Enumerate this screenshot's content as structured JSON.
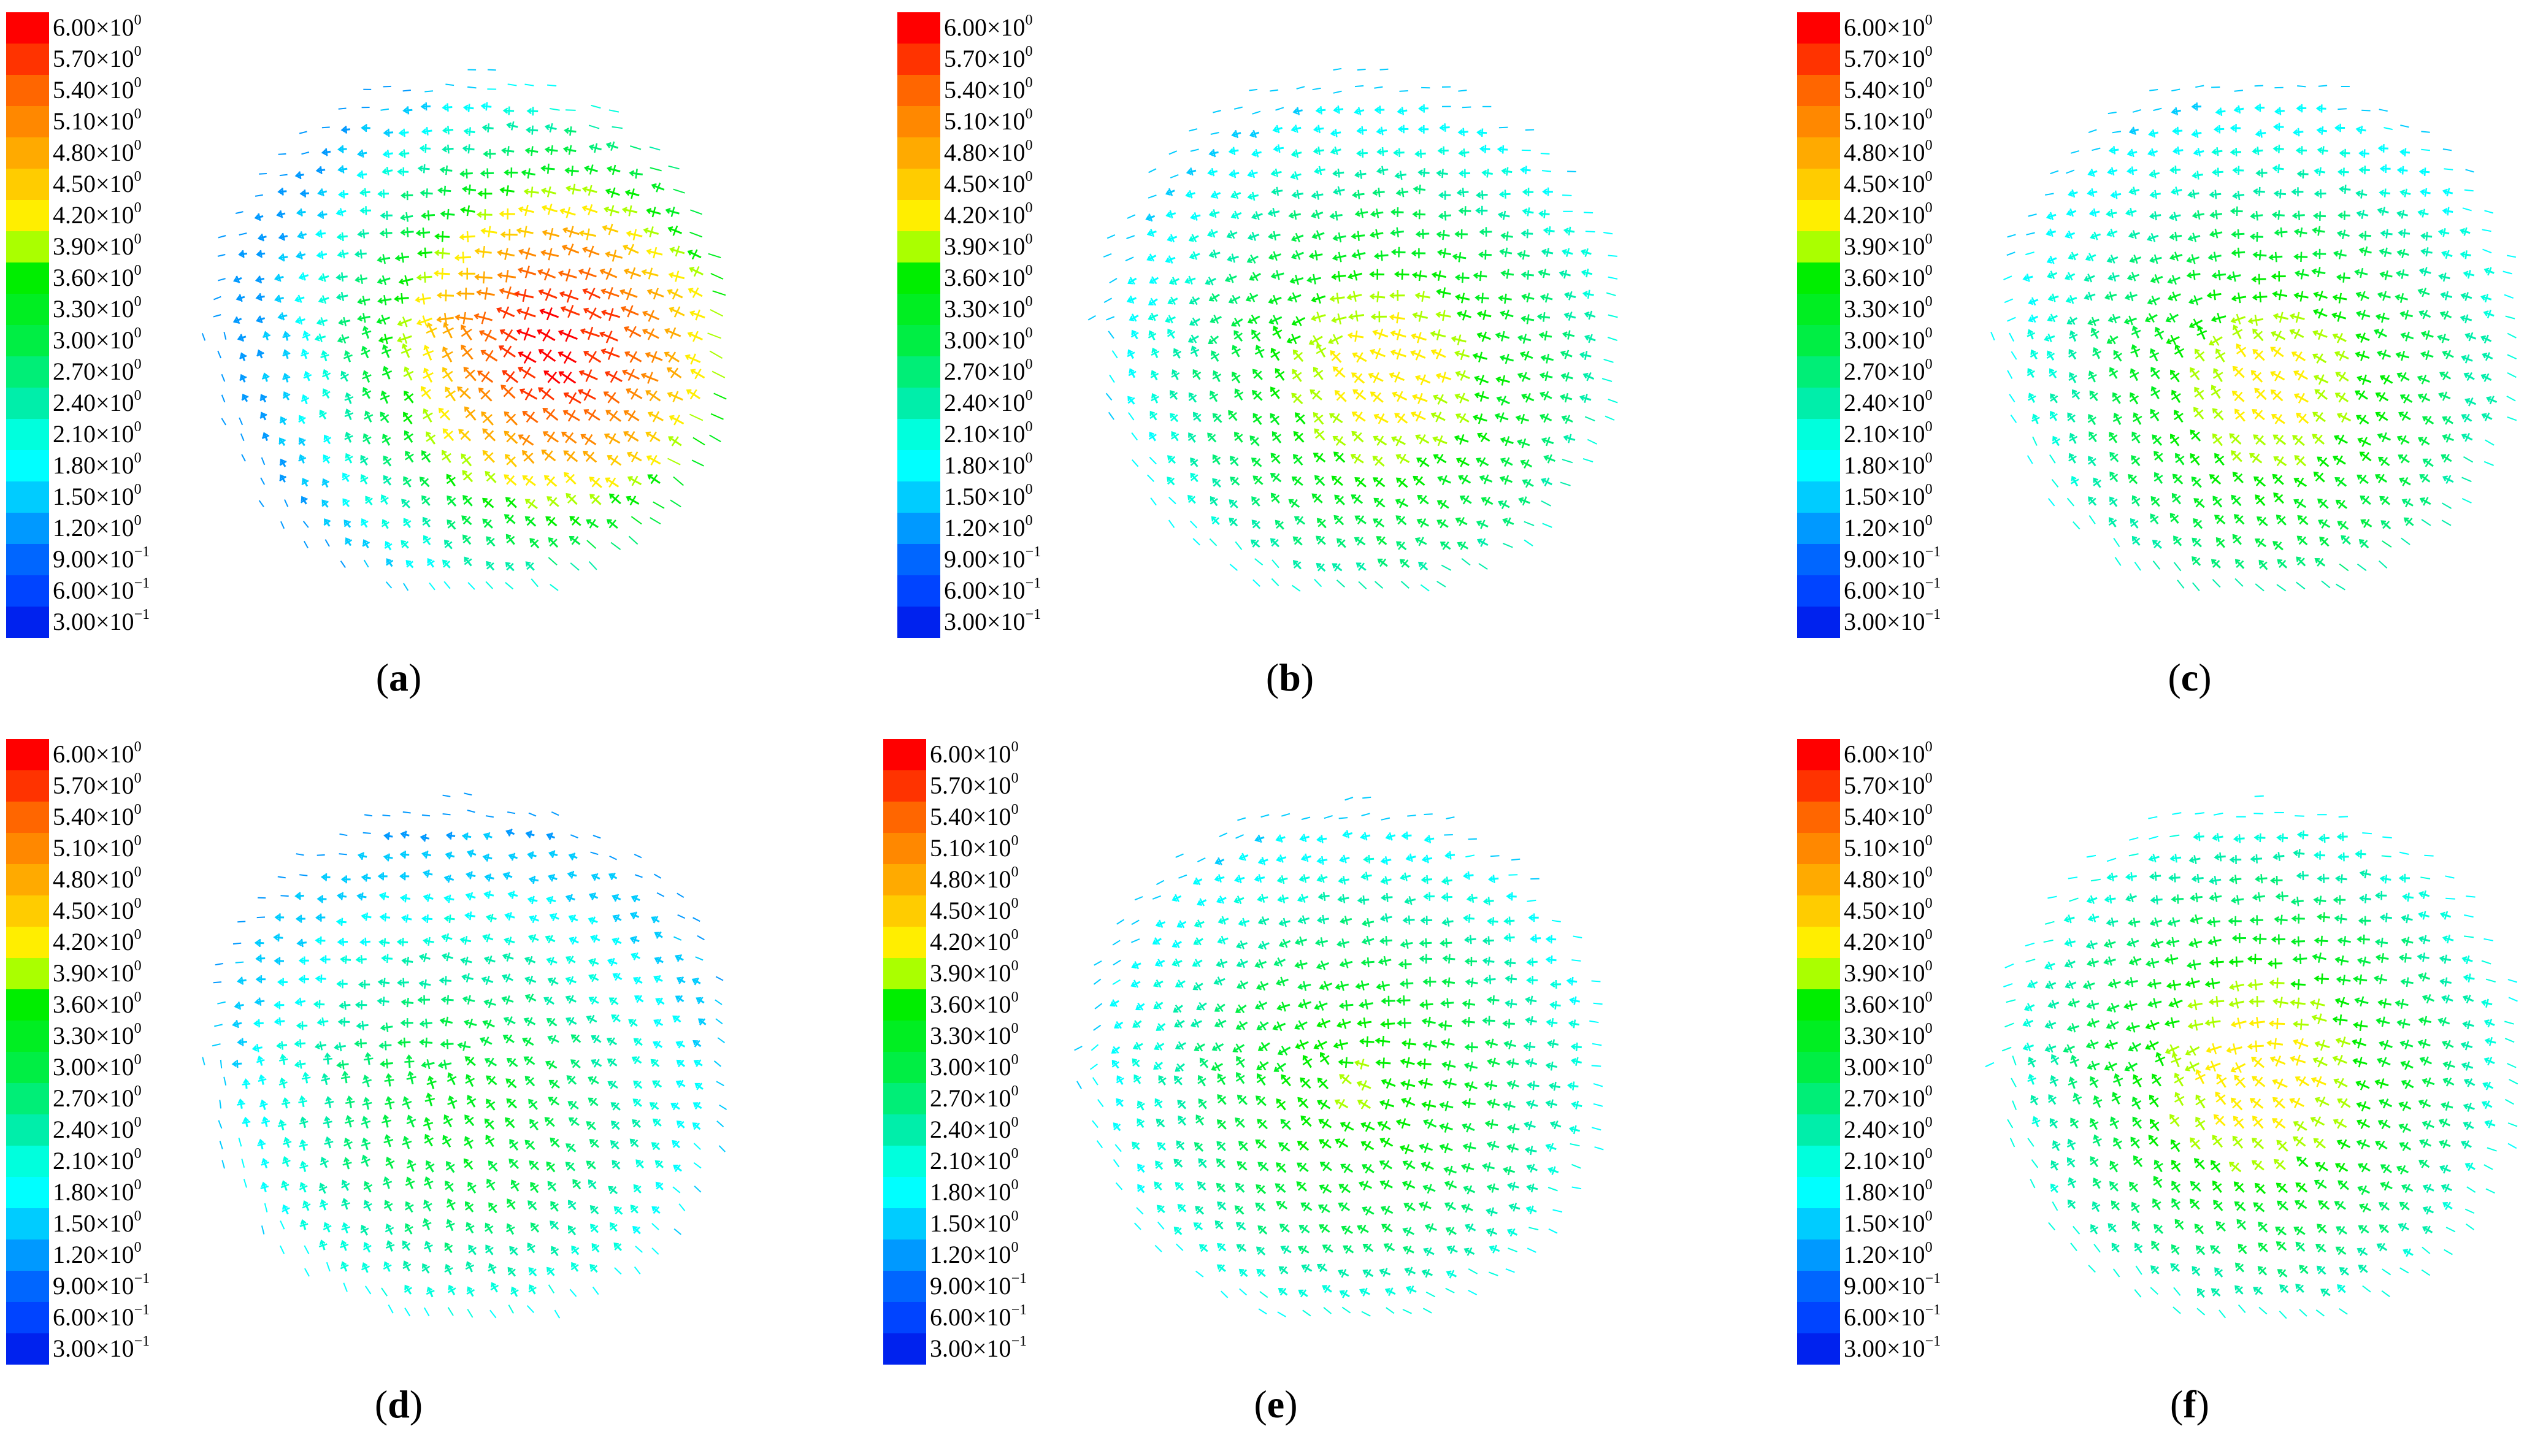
{
  "legend": {
    "colors": [
      "#ff0000",
      "#ff3300",
      "#ff6600",
      "#ff8800",
      "#ffaa00",
      "#ffcc00",
      "#ffee00",
      "#aaff00",
      "#00ee00",
      "#00ee22",
      "#00ee44",
      "#00ee77",
      "#00eeaa",
      "#00ffdd",
      "#00ffff",
      "#00ccff",
      "#0099ff",
      "#0066ff",
      "#0044ff",
      "#0022ee"
    ],
    "labels": [
      {
        "mantissa": "6.00×10",
        "exponent": "0"
      },
      {
        "mantissa": "5.70×10",
        "exponent": "0"
      },
      {
        "mantissa": "5.40×10",
        "exponent": "0"
      },
      {
        "mantissa": "5.10×10",
        "exponent": "0"
      },
      {
        "mantissa": "4.80×10",
        "exponent": "0"
      },
      {
        "mantissa": "4.50×10",
        "exponent": "0"
      },
      {
        "mantissa": "4.20×10",
        "exponent": "0"
      },
      {
        "mantissa": "3.90×10",
        "exponent": "0"
      },
      {
        "mantissa": "3.60×10",
        "exponent": "0"
      },
      {
        "mantissa": "3.30×10",
        "exponent": "0"
      },
      {
        "mantissa": "3.00×10",
        "exponent": "0"
      },
      {
        "mantissa": "2.70×10",
        "exponent": "0"
      },
      {
        "mantissa": "2.40×10",
        "exponent": "0"
      },
      {
        "mantissa": "2.10×10",
        "exponent": "0"
      },
      {
        "mantissa": "1.80×10",
        "exponent": "0"
      },
      {
        "mantissa": "1.50×10",
        "exponent": "0"
      },
      {
        "mantissa": "1.20×10",
        "exponent": "0"
      },
      {
        "mantissa": "9.00×10",
        "exponent": "−1"
      },
      {
        "mantissa": "6.00×10",
        "exponent": "−1"
      },
      {
        "mantissa": "3.00×10",
        "exponent": "−1"
      }
    ]
  },
  "panels": [
    {
      "id": "a",
      "caption_open": "(",
      "caption_letter": "a",
      "caption_close": ")",
      "flow_angle_deg": 205,
      "peak_level": 6.0,
      "edge_level": 1.2,
      "hotspot": [
        0.35,
        0.05
      ]
    },
    {
      "id": "b",
      "caption_open": "(",
      "caption_letter": "b",
      "caption_close": ")",
      "flow_angle_deg": 195,
      "peak_level": 4.3,
      "edge_level": 1.4,
      "hotspot": [
        0.1,
        0.15
      ]
    },
    {
      "id": "c",
      "caption_open": "(",
      "caption_letter": "c",
      "caption_close": ")",
      "flow_angle_deg": 200,
      "peak_level": 4.2,
      "edge_level": 1.5,
      "hotspot": [
        0.05,
        0.2
      ]
    },
    {
      "id": "d",
      "caption_open": "(",
      "caption_letter": "d",
      "caption_close": ")",
      "flow_angle_deg": 215,
      "peak_level": 3.3,
      "edge_level": 1.2,
      "hotspot": [
        0.0,
        0.2
      ]
    },
    {
      "id": "e",
      "caption_open": "(",
      "caption_letter": "e",
      "caption_close": ")",
      "flow_angle_deg": 190,
      "peak_level": 3.8,
      "edge_level": 1.4,
      "hotspot": [
        0.05,
        0.1
      ]
    },
    {
      "id": "f",
      "caption_open": "(",
      "caption_letter": "f",
      "caption_close": ")",
      "flow_angle_deg": 200,
      "peak_level": 4.3,
      "edge_level": 1.6,
      "hotspot": [
        0.0,
        0.05
      ]
    }
  ]
}
